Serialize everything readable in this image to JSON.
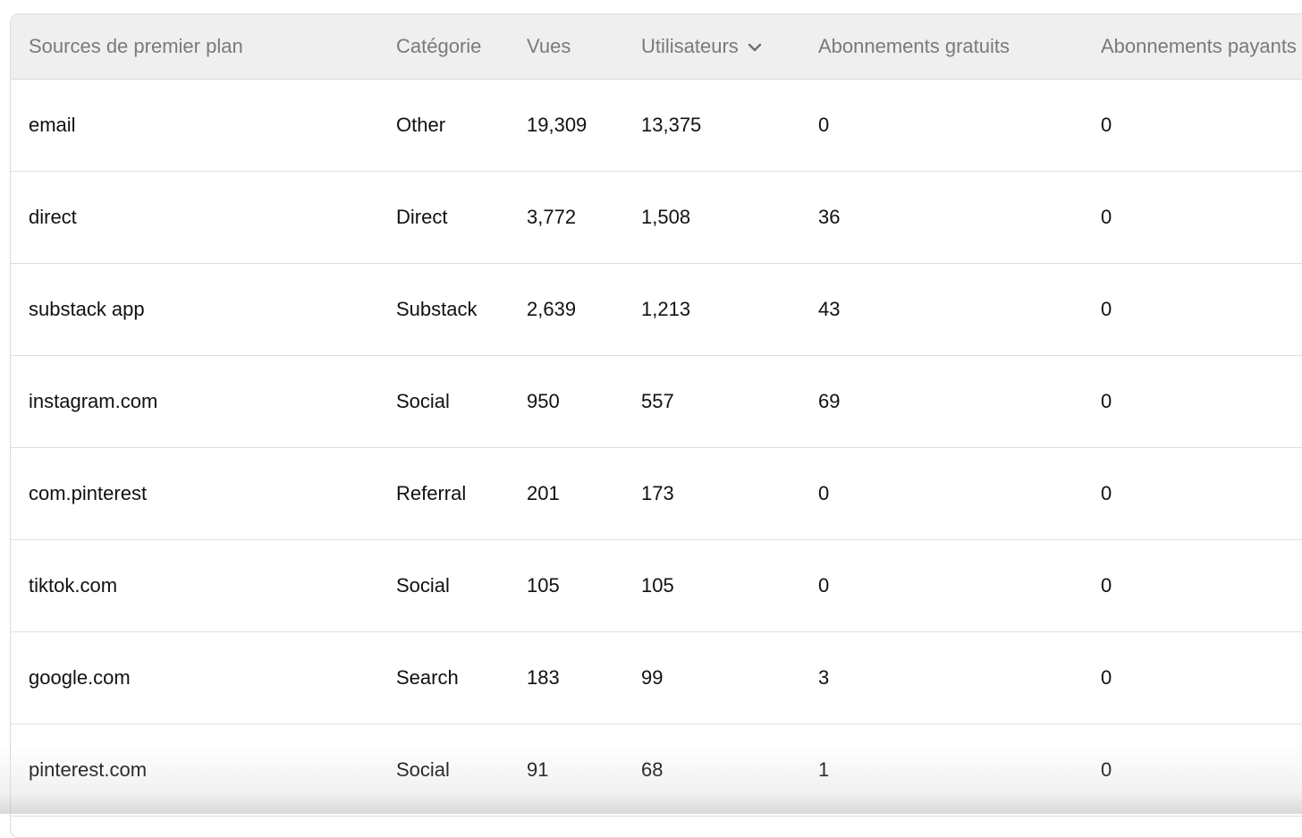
{
  "table": {
    "columns": [
      {
        "label": "Sources de premier plan"
      },
      {
        "label": "Catégorie"
      },
      {
        "label": "Vues"
      },
      {
        "label": "Utilisateurs",
        "sort_icon": "chevron-down-icon"
      },
      {
        "label": "Abonnements gratuits"
      },
      {
        "label": "Abonnements payants"
      }
    ],
    "rows": [
      {
        "source": "email",
        "category": "Other",
        "views": "19,309",
        "users": "13,375",
        "free_subs": "0",
        "paid_subs": "0"
      },
      {
        "source": "direct",
        "category": "Direct",
        "views": "3,772",
        "users": "1,508",
        "free_subs": "36",
        "paid_subs": "0"
      },
      {
        "source": "substack app",
        "category": "Substack",
        "views": "2,639",
        "users": "1,213",
        "free_subs": "43",
        "paid_subs": "0"
      },
      {
        "source": "instagram.com",
        "category": "Social",
        "views": "950",
        "users": "557",
        "free_subs": "69",
        "paid_subs": "0"
      },
      {
        "source": "com.pinterest",
        "category": "Referral",
        "views": "201",
        "users": "173",
        "free_subs": "0",
        "paid_subs": "0"
      },
      {
        "source": "tiktok.com",
        "category": "Social",
        "views": "105",
        "users": "105",
        "free_subs": "0",
        "paid_subs": "0"
      },
      {
        "source": "google.com",
        "category": "Search",
        "views": "183",
        "users": "99",
        "free_subs": "3",
        "paid_subs": "0"
      },
      {
        "source": "pinterest.com",
        "category": "Social",
        "views": "91",
        "users": "68",
        "free_subs": "1",
        "paid_subs": "0"
      }
    ]
  },
  "colors": {
    "header_bg": "#efefef",
    "header_text": "#7a7a7a",
    "cell_text": "#111111",
    "border": "#dedede"
  }
}
